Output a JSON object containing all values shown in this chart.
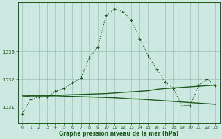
{
  "title": "Graphe pression niveau de la mer (hPa)",
  "background_color": "#cce8e0",
  "line_color": "#1a5c1a",
  "grid_color": "#a0c8c0",
  "ylim": [
    1030.45,
    1034.75
  ],
  "yticks": [
    1031,
    1032,
    1033
  ],
  "xlim": [
    -0.5,
    23.5
  ],
  "xticks": [
    0,
    1,
    2,
    3,
    4,
    5,
    6,
    7,
    8,
    9,
    10,
    11,
    12,
    13,
    14,
    15,
    16,
    17,
    18,
    19,
    20,
    21,
    22,
    23
  ],
  "series1": [
    1030.78,
    1031.28,
    1031.38,
    1031.38,
    1031.58,
    1031.68,
    1031.88,
    1032.05,
    1032.78,
    1033.15,
    1034.28,
    1034.52,
    1034.42,
    1034.12,
    1033.45,
    1032.85,
    1032.38,
    1031.92,
    1031.68,
    1031.08,
    1031.08,
    1031.78,
    1032.02,
    1031.78
  ],
  "series2_up": [
    1031.38,
    1031.42,
    1031.42,
    1031.42,
    1031.44,
    1031.45,
    1031.46,
    1031.47,
    1031.48,
    1031.49,
    1031.5,
    1031.52,
    1031.54,
    1031.56,
    1031.58,
    1031.6,
    1031.65,
    1031.68,
    1031.7,
    1031.72,
    1031.74,
    1031.76,
    1031.78,
    1031.8
  ],
  "series2_down": [
    1031.42,
    1031.42,
    1031.42,
    1031.42,
    1031.42,
    1031.41,
    1031.4,
    1031.39,
    1031.38,
    1031.37,
    1031.36,
    1031.35,
    1031.33,
    1031.31,
    1031.3,
    1031.28,
    1031.26,
    1031.24,
    1031.22,
    1031.2,
    1031.18,
    1031.16,
    1031.14,
    1031.12
  ]
}
